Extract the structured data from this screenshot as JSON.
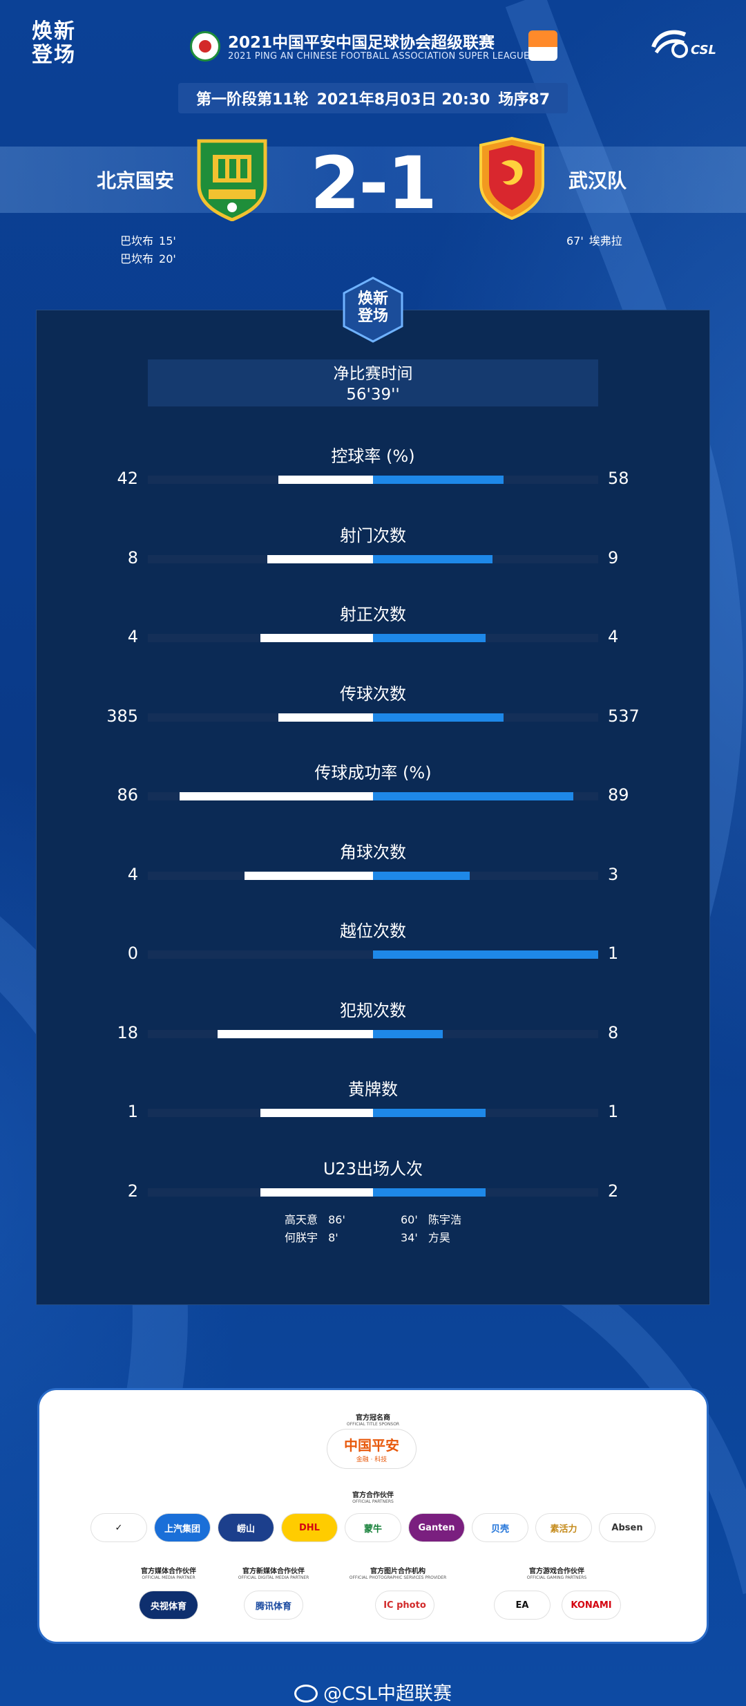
{
  "header": {
    "brand_left": [
      "焕新",
      "登场"
    ],
    "title": "2021中国平安中国足球协会超级联赛",
    "subtitle": "2021 PING AN CHINESE FOOTBALL ASSOCIATION SUPER LEAGUE",
    "csl": "CSL"
  },
  "match": {
    "stage": "第一阶段第11轮",
    "datetime": "2021年8月03日 20:30",
    "match_no": "场序87",
    "home_team": "北京国安",
    "away_team": "武汉队",
    "score": "2-1"
  },
  "scorers": {
    "home": [
      {
        "name": "巴坎布",
        "minute": "15'"
      },
      {
        "name": "巴坎布",
        "minute": "20'"
      }
    ],
    "away": [
      {
        "minute": "67'",
        "name": "埃弗拉"
      }
    ]
  },
  "badge": [
    "焕新",
    "登场"
  ],
  "net_time": {
    "label": "净比赛时间",
    "value": "56'39''"
  },
  "stats": [
    {
      "label": "控球率 (%)",
      "home": "42",
      "away": "58",
      "home_frac": 0.42,
      "away_frac": 0.58
    },
    {
      "label": "射门次数",
      "home": "8",
      "away": "9",
      "home_frac": 0.47,
      "away_frac": 0.53
    },
    {
      "label": "射正次数",
      "home": "4",
      "away": "4",
      "home_frac": 0.5,
      "away_frac": 0.5
    },
    {
      "label": "传球次数",
      "home": "385",
      "away": "537",
      "home_frac": 0.42,
      "away_frac": 0.58
    },
    {
      "label": "传球成功率 (%)",
      "home": "86",
      "away": "89",
      "home_frac": 0.86,
      "away_frac": 0.89
    },
    {
      "label": "角球次数",
      "home": "4",
      "away": "3",
      "home_frac": 0.57,
      "away_frac": 0.43
    },
    {
      "label": "越位次数",
      "home": "0",
      "away": "1",
      "home_frac": 0,
      "away_frac": 1
    },
    {
      "label": "犯规次数",
      "home": "18",
      "away": "8",
      "home_frac": 0.69,
      "away_frac": 0.31
    },
    {
      "label": "黄牌数",
      "home": "1",
      "away": "1",
      "home_frac": 0.5,
      "away_frac": 0.5
    },
    {
      "label": "U23出场人次",
      "home": "2",
      "away": "2",
      "home_frac": 0.5,
      "away_frac": 0.5
    }
  ],
  "u23": {
    "home": [
      {
        "name": "高天意",
        "minute": "86'"
      },
      {
        "name": "何朕宇",
        "minute": "8'"
      }
    ],
    "away": [
      {
        "minute": "60'",
        "name": "陈宇浩"
      },
      {
        "minute": "34'",
        "name": "方昊"
      }
    ]
  },
  "sponsors": {
    "title_head": "官方冠名商",
    "title_head_en": "OFFICIAL TITLE SPONSOR",
    "title_name": "中国平安",
    "title_tag": "金融 · 科技",
    "partners_head": "官方合作伙伴",
    "partners_head_en": "OFFICIAL PARTNERS",
    "partners": [
      {
        "name": "✓",
        "bg": "#ffffff",
        "fg": "#111111"
      },
      {
        "name": "上汽集团",
        "bg": "#1a6fd8",
        "fg": "#ffffff"
      },
      {
        "name": "崂山",
        "bg": "#1c3f8c",
        "fg": "#ffffff"
      },
      {
        "name": "DHL",
        "bg": "#ffcc00",
        "fg": "#d40511"
      },
      {
        "name": "蒙牛",
        "bg": "#ffffff",
        "fg": "#17813a"
      },
      {
        "name": "Ganten",
        "bg": "#7a1f7f",
        "fg": "#ffffff"
      },
      {
        "name": "贝壳",
        "bg": "#ffffff",
        "fg": "#1a6fd8"
      },
      {
        "name": "素活力",
        "bg": "#ffffff",
        "fg": "#c48a1a"
      },
      {
        "name": "Absen",
        "bg": "#ffffff",
        "fg": "#333333"
      }
    ],
    "media_head": "官方媒体合作伙伴",
    "media_head_en": "OFFICIAL MEDIA PARTNER",
    "media_name": "央视体育",
    "digital_head": "官方新媒体合作伙伴",
    "digital_head_en": "OFFICIAL DIGITAL MEDIA PARTNER",
    "digital_name": "腾讯体育",
    "photo_head": "官方图片合作机构",
    "photo_head_en": "OFFICIAL PHOTOGRAPHIC SERVICES PROVIDER",
    "photo_name": "IC photo",
    "game_head": "官方游戏合作伙伴",
    "game_head_en": "OFFICIAL GAMING PARTNERS",
    "game_names": [
      "EA",
      "KONAMI"
    ]
  },
  "footer": "@CSL中超联赛"
}
